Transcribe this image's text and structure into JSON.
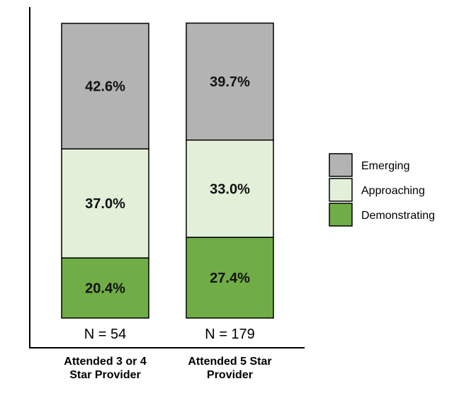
{
  "chart_data": {
    "type": "bar",
    "stacked": true,
    "title": "",
    "xlabel": "",
    "ylabel": "",
    "ylim": [
      0,
      100
    ],
    "categories": [
      "Attended 3 or 4 Star Provider",
      "Attended 5 Star Provider"
    ],
    "category_lines": [
      [
        "Attended 3 or 4",
        "Star Provider"
      ],
      [
        "Attended 5 Star",
        "Provider"
      ]
    ],
    "n_labels": [
      "N = 54",
      "N = 179"
    ],
    "series": [
      {
        "name": "Demonstrating",
        "values": [
          20.4,
          27.4
        ],
        "labels": [
          "20.4%",
          "27.4%"
        ],
        "color": "#70ad47"
      },
      {
        "name": "Approaching",
        "values": [
          37.0,
          33.0
        ],
        "labels": [
          "37.0%",
          "33.0%"
        ],
        "color": "#e2f0d9"
      },
      {
        "name": "Emerging",
        "values": [
          42.6,
          39.7
        ],
        "labels": [
          "42.6%",
          "39.7%"
        ],
        "color": "#b3b3b3"
      }
    ],
    "legend": {
      "position": "right",
      "order": [
        "Emerging",
        "Approaching",
        "Demonstrating"
      ]
    }
  }
}
